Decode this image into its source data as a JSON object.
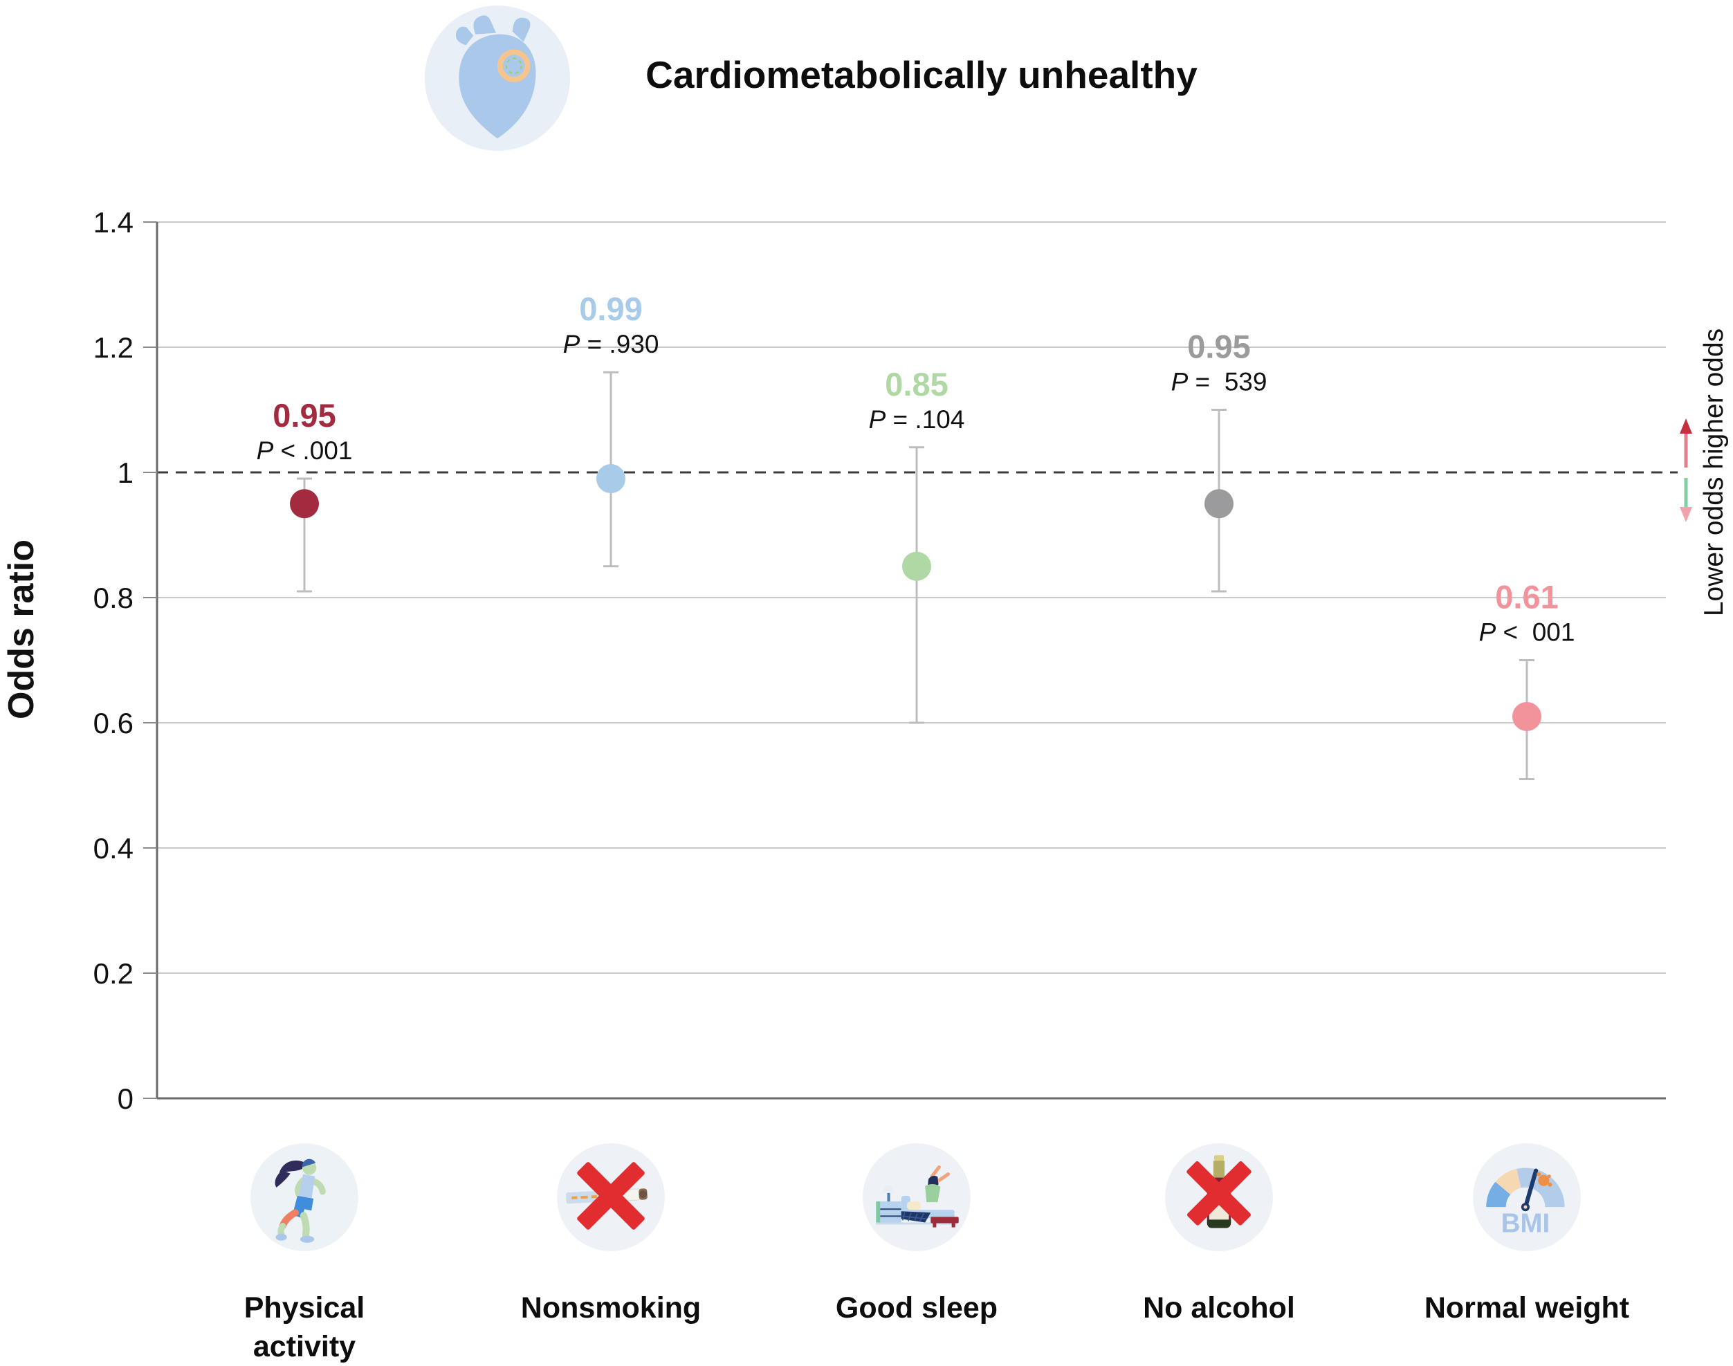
{
  "header": {
    "title": "Cardiometabolically unhealthy",
    "icon": "heart-icon"
  },
  "chart_data": {
    "type": "scatter",
    "subtype": "point-estimate-with-ci-forest-plot",
    "title": "Cardiometabolically unhealthy",
    "xlabel": "",
    "ylabel": "Odds ratio",
    "ylim": [
      0,
      1.4
    ],
    "yticks": [
      1.4,
      1.2,
      1,
      0.8,
      0.6,
      0.4,
      0.2,
      0
    ],
    "reference_line": 1.0,
    "grid": true,
    "legend": "none",
    "categories": [
      "Physical activity",
      "Nonsmoking",
      "Good sleep",
      "No alcohol",
      "Normal weight"
    ],
    "points": [
      {
        "category": "Physical activity",
        "odds_ratio": 0.95,
        "or_label": "0.95",
        "ci_low": 0.81,
        "ci_high": 0.99,
        "p_prefix": "P",
        "p_rest": "< .001",
        "color": "#a32b40"
      },
      {
        "category": "Nonsmoking",
        "odds_ratio": 0.99,
        "or_label": "0.99",
        "ci_low": 0.85,
        "ci_high": 1.16,
        "p_prefix": "P",
        "p_rest": "= .930",
        "color": "#a9cbea"
      },
      {
        "category": "Good sleep",
        "odds_ratio": 0.85,
        "or_label": "0.85",
        "ci_low": 0.6,
        "ci_high": 1.04,
        "p_prefix": "P",
        "p_rest": "= .104",
        "color": "#afd8a5"
      },
      {
        "category": "No alcohol",
        "odds_ratio": 0.95,
        "or_label": "0.95",
        "ci_low": 0.81,
        "ci_high": 1.1,
        "p_prefix": "P",
        "p_rest": "=  539",
        "color": "#9b9b9d"
      },
      {
        "category": "Normal weight",
        "odds_ratio": 0.61,
        "or_label": "0.61",
        "ci_low": 0.51,
        "ci_high": 0.7,
        "p_prefix": "P",
        "p_rest": "<  001",
        "color": "#f2939b"
      }
    ],
    "annotation": {
      "text": "Lower odds higher odds",
      "up_arrow_line_color": "#e2808c",
      "up_arrow_head_color": "#c4313c",
      "down_arrow_line_color": "#82cfa4",
      "down_arrow_head_color": "#f2a2ac"
    },
    "style": {
      "grid_color": "#c9c9c9",
      "axis_color": "#6a6a6a",
      "tick_color": "#8a8a8a",
      "error_bar_color": "#bdbdbd",
      "reference_line_color": "#3c3c3c",
      "text_color": "#111111"
    }
  },
  "categories": [
    {
      "label": "Physical activity",
      "icon": "runner-icon"
    },
    {
      "label": "Nonsmoking",
      "icon": "no-smoking-icon"
    },
    {
      "label": "Good sleep",
      "icon": "good-sleep-icon"
    },
    {
      "label": "No alcohol",
      "icon": "no-alcohol-icon"
    },
    {
      "label": "Normal weight",
      "icon": "bmi-gauge-icon",
      "icon_text": "BMI"
    }
  ]
}
